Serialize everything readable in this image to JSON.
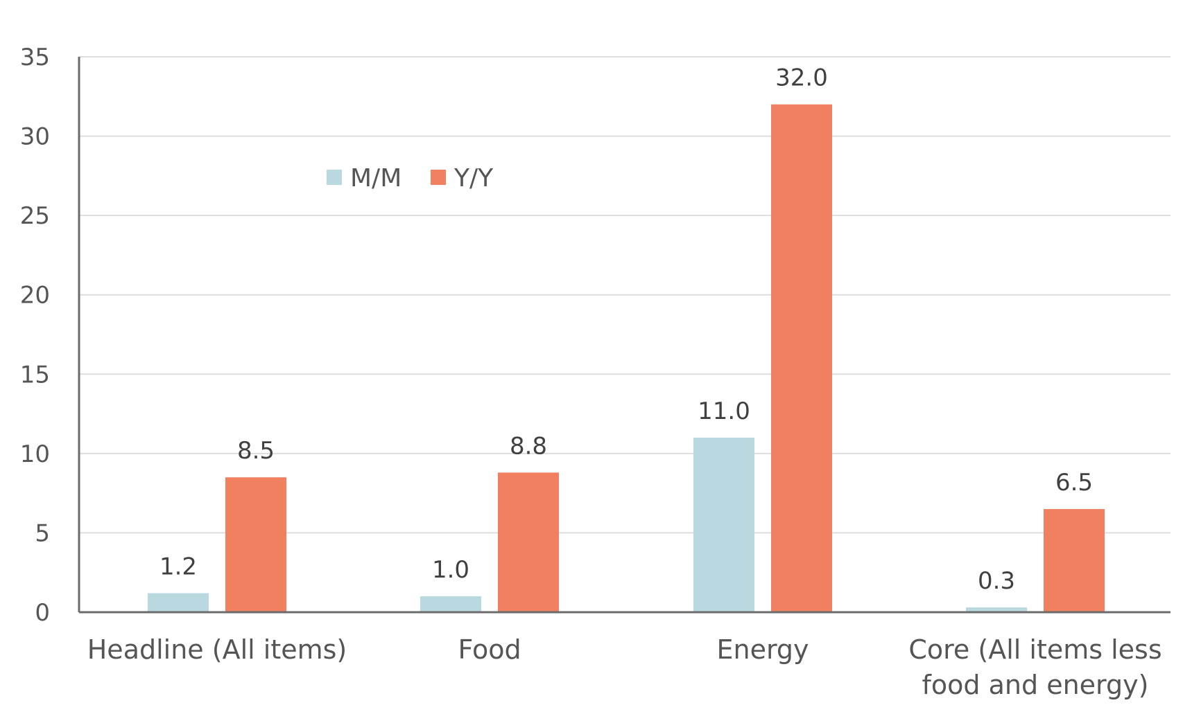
{
  "chart_data": {
    "type": "bar",
    "categories": [
      [
        "Headline (All items)"
      ],
      [
        "Food"
      ],
      [
        "Energy"
      ],
      [
        "Core (All items less",
        "food and energy)"
      ]
    ],
    "series": [
      {
        "name": "M/M",
        "values": [
          1.2,
          1.0,
          11.0,
          0.3
        ],
        "labels": [
          "1.2",
          "1.0",
          "11.0",
          "0.3"
        ],
        "color": "#b9d8df"
      },
      {
        "name": "Y/Y",
        "values": [
          8.5,
          8.8,
          32.0,
          6.5
        ],
        "labels": [
          "8.5",
          "8.8",
          "32.0",
          "6.5"
        ],
        "color": "#f0805f"
      }
    ],
    "ylim": [
      0,
      35
    ],
    "yticks": [
      "0",
      "5",
      "10",
      "15",
      "20",
      "25",
      "30",
      "35"
    ],
    "grid": true,
    "legend_position": "top-left"
  }
}
